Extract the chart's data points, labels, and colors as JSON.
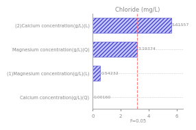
{
  "title": "Chloride (mg/L)",
  "xlabel": "F=0.05",
  "categories": [
    "(2)Calcium concentration(g/L)(L)",
    "Magnesium concentration(g/L)(Q)",
    "(1)Magnesium concentration(g/L)(L)",
    "Calcium concentration(g/L)(Q)"
  ],
  "values": [
    5.61557,
    3.19374,
    0.54232,
    0.0016
  ],
  "bar_facecolor": "#c8c8ff",
  "bar_edgecolor": "#4444cc",
  "dashed_line_x": 3.19374,
  "value_labels": [
    "5.61557",
    "3.19374",
    "0.54232",
    "0.00160"
  ],
  "title_fontsize": 6.0,
  "label_fontsize": 4.8,
  "tick_fontsize": 5.0,
  "value_fontsize": 4.5,
  "background_color": "#ffffff",
  "grid_color": "#cccccc",
  "text_color": "#888888",
  "spine_color": "#aaaaaa"
}
